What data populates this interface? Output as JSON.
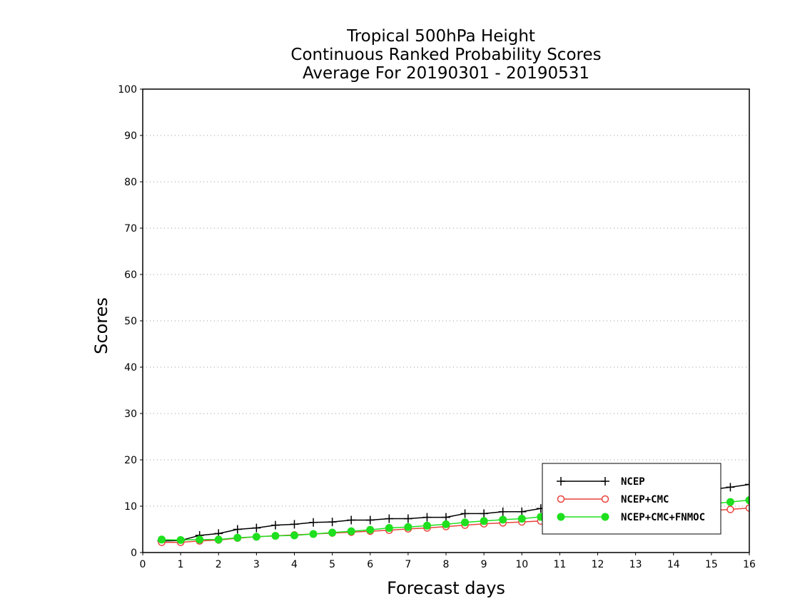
{
  "chart_data": {
    "type": "line",
    "title": [
      "Tropical 500hPa Height",
      "Continuous Ranked Probability Scores",
      "Average For 20190301 - 20190531"
    ],
    "xlabel": "Forecast days",
    "ylabel": "Scores",
    "xlim": [
      0,
      16
    ],
    "ylim": [
      0,
      100
    ],
    "xticks": [
      0,
      1,
      2,
      3,
      4,
      5,
      6,
      7,
      8,
      9,
      10,
      11,
      12,
      13,
      14,
      15,
      16
    ],
    "yticks": [
      0,
      10,
      20,
      30,
      40,
      50,
      60,
      70,
      80,
      90,
      100
    ],
    "grid": "horizontal-dotted",
    "legend_position": "bottom-right",
    "x": [
      0.5,
      1,
      1.5,
      2,
      2.5,
      3,
      3.5,
      4,
      4.5,
      5,
      5.5,
      6,
      6.5,
      7,
      7.5,
      8,
      8.5,
      9,
      9.5,
      10,
      10.5,
      11,
      11.5,
      12,
      12.5,
      13,
      13.5,
      14,
      14.5,
      15,
      15.5,
      16
    ],
    "series": [
      {
        "name": "NCEP",
        "color": "#000000",
        "marker": "plus",
        "values": [
          2.5,
          2.6,
          3.7,
          4.1,
          5.0,
          5.3,
          5.9,
          6.1,
          6.5,
          6.6,
          7.0,
          7.0,
          7.3,
          7.3,
          7.6,
          7.6,
          8.4,
          8.4,
          8.8,
          8.8,
          9.5,
          10.0,
          10.4,
          10.8,
          11.2,
          11.6,
          12.0,
          12.5,
          13.0,
          13.6,
          14.1,
          14.7
        ]
      },
      {
        "name": "NCEP+CMC",
        "color": "#e8423c",
        "marker": "open-circle",
        "values": [
          2.2,
          2.2,
          2.5,
          2.7,
          3.1,
          3.4,
          3.6,
          3.8,
          4.0,
          4.2,
          4.4,
          4.6,
          4.8,
          5.1,
          5.3,
          5.6,
          5.9,
          6.2,
          6.4,
          6.6,
          6.8,
          7.1,
          7.4,
          7.6,
          7.8,
          8.1,
          8.3,
          8.6,
          8.8,
          9.1,
          9.3,
          9.6
        ]
      },
      {
        "name": "NCEP+CMC+FNMOC",
        "color": "#1ee01e",
        "marker": "filled-circle",
        "values": [
          2.8,
          2.7,
          2.8,
          2.8,
          3.2,
          3.4,
          3.6,
          3.7,
          4.0,
          4.3,
          4.6,
          4.9,
          5.3,
          5.5,
          5.8,
          6.1,
          6.5,
          6.8,
          7.1,
          7.3,
          7.7,
          8.0,
          8.3,
          8.6,
          8.9,
          9.2,
          9.5,
          9.8,
          10.1,
          10.5,
          10.9,
          11.3
        ]
      }
    ]
  }
}
